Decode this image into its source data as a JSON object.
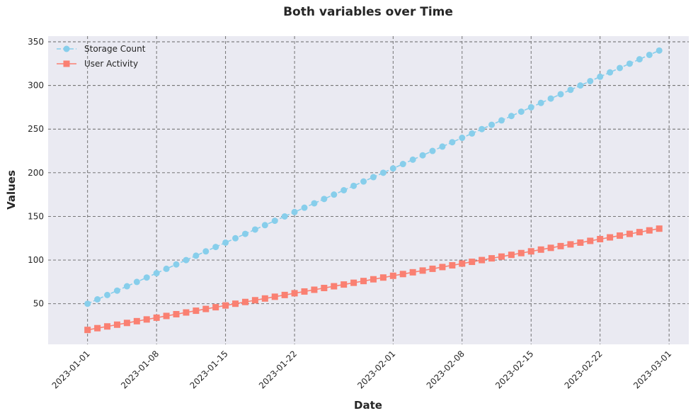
{
  "chart_data": {
    "type": "line",
    "title": "Both variables over Time",
    "xlabel": "Date",
    "ylabel": "Values",
    "x_range": [
      "2022-12-28",
      "2023-03-03"
    ],
    "ylim": [
      3.5,
      356.5
    ],
    "yticks": [
      50,
      100,
      150,
      200,
      250,
      300,
      350
    ],
    "xticks": [
      "2023-01-01",
      "2023-01-08",
      "2023-01-15",
      "2023-01-22",
      "2023-02-01",
      "2023-02-08",
      "2023-02-15",
      "2023-02-22",
      "2023-03-01"
    ],
    "grid": true,
    "legend_position": "top-left",
    "x_start": "2023-01-01",
    "x_count": 59,
    "series": [
      {
        "name": "Storage Count",
        "color": "#87CEEB",
        "marker": "circle",
        "linestyle": "dashed",
        "values": [
          50,
          55,
          60,
          65,
          70,
          75,
          80,
          85,
          90,
          95,
          100,
          105,
          110,
          115,
          120,
          125,
          130,
          135,
          140,
          145,
          150,
          155,
          160,
          165,
          170,
          175,
          180,
          185,
          190,
          195,
          200,
          205,
          210,
          215,
          220,
          225,
          230,
          235,
          240,
          245,
          250,
          255,
          260,
          265,
          270,
          275,
          280,
          285,
          290,
          295,
          300,
          305,
          310,
          315,
          320,
          325,
          330,
          335,
          340
        ]
      },
      {
        "name": "User Activity",
        "color": "#FA8072",
        "marker": "square",
        "linestyle": "solid",
        "values": [
          20,
          22,
          24,
          26,
          28,
          30,
          32,
          34,
          36,
          38,
          40,
          42,
          44,
          46,
          48,
          50,
          52,
          54,
          56,
          58,
          60,
          62,
          64,
          66,
          68,
          70,
          72,
          74,
          76,
          78,
          80,
          82,
          84,
          86,
          88,
          90,
          92,
          94,
          96,
          98,
          100,
          102,
          104,
          106,
          108,
          110,
          112,
          114,
          116,
          118,
          120,
          122,
          124,
          126,
          128,
          130,
          132,
          134,
          136
        ]
      }
    ]
  }
}
